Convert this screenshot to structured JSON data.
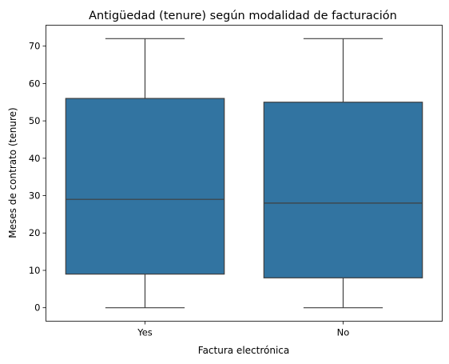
{
  "chart_data": {
    "type": "boxplot",
    "title": "Antigüedad (tenure) según modalidad de facturación",
    "xlabel": "Factura electrónica",
    "ylabel": "Meses de contrato (tenure)",
    "categories": [
      "Yes",
      "No"
    ],
    "boxes": [
      {
        "category": "Yes",
        "min": 0,
        "q1": 9,
        "median": 29,
        "q3": 56,
        "max": 72
      },
      {
        "category": "No",
        "min": 0,
        "q1": 8,
        "median": 28,
        "q3": 55,
        "max": 72
      }
    ],
    "yticks": [
      0,
      10,
      20,
      30,
      40,
      50,
      60,
      70
    ],
    "ylim": [
      -3.6,
      75.6
    ],
    "grid": false,
    "box_color": "#3274a1",
    "line_color": "#3f3f3f"
  }
}
